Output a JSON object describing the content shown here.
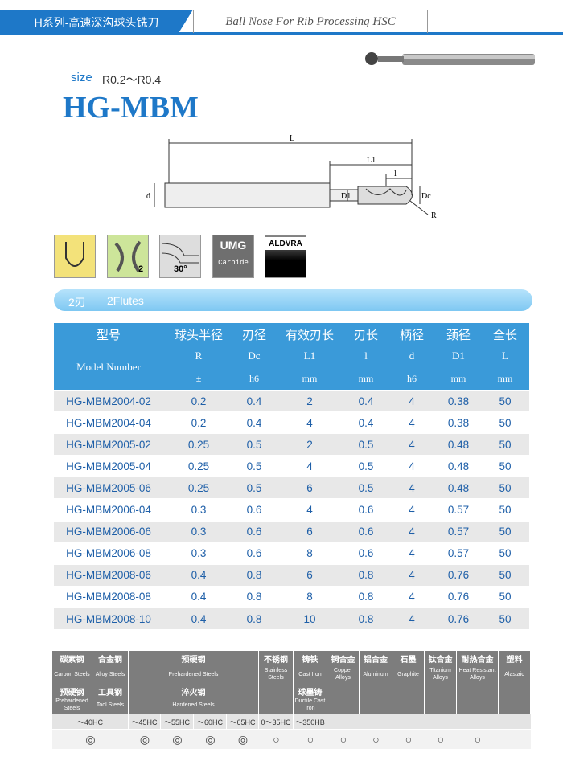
{
  "header": {
    "tab": "H系列-高速深沟球头铣刀",
    "subtitle": "Ball Nose For Rib Processing HSC"
  },
  "size": {
    "label": "size",
    "range": "R0.2～R0.4"
  },
  "title": "HG-MBM",
  "diagram": {
    "L": "L",
    "L1": "L1",
    "l": "l",
    "d": "d",
    "D1": "D1",
    "Dc": "Dc",
    "R": "R"
  },
  "icons": {
    "flutes": "2",
    "angle": "30°",
    "coating": "UMG",
    "material": "Carbide",
    "series": "ALDVRA"
  },
  "band": {
    "flutes_cn": "2刃",
    "flutes_en": "2Flutes"
  },
  "table": {
    "header_cn": [
      "型号",
      "球头半径",
      "刃径",
      "有效刃长",
      "刃长",
      "柄径",
      "颈径",
      "全长"
    ],
    "header_en": [
      "Model Number",
      "R",
      "Dc",
      "L1",
      "l",
      "d",
      "D1",
      "L"
    ],
    "header_unit": [
      "±",
      "h6",
      "mm",
      "mm",
      "h6",
      "mm",
      "mm"
    ],
    "rows": [
      [
        "HG-MBM2004-02",
        0.2,
        0.4,
        2,
        0.4,
        4,
        0.38,
        50
      ],
      [
        "HG-MBM2004-04",
        0.2,
        0.4,
        4,
        0.4,
        4,
        0.38,
        50
      ],
      [
        "HG-MBM2005-02",
        0.25,
        0.5,
        2,
        0.5,
        4,
        0.48,
        50
      ],
      [
        "HG-MBM2005-04",
        0.25,
        0.5,
        4,
        0.5,
        4,
        0.48,
        50
      ],
      [
        "HG-MBM2005-06",
        0.25,
        0.5,
        6,
        0.5,
        4,
        0.48,
        50
      ],
      [
        "HG-MBM2006-04",
        0.3,
        0.6,
        4,
        0.6,
        4,
        0.57,
        50
      ],
      [
        "HG-MBM2006-06",
        0.3,
        0.6,
        6,
        0.6,
        4,
        0.57,
        50
      ],
      [
        "HG-MBM2006-08",
        0.3,
        0.6,
        8,
        0.6,
        4,
        0.57,
        50
      ],
      [
        "HG-MBM2008-06",
        0.4,
        0.8,
        6,
        0.8,
        4,
        0.76,
        50
      ],
      [
        "HG-MBM2008-08",
        0.4,
        0.8,
        8,
        0.8,
        4,
        0.76,
        50
      ],
      [
        "HG-MBM2008-10",
        0.4,
        0.8,
        10,
        0.8,
        4,
        0.76,
        50
      ]
    ]
  },
  "materials": {
    "columns": [
      {
        "cn": "碳素钢",
        "en": "Carbon Steels",
        "cn2": "预硬钢",
        "en2": "Prehardened Steels"
      },
      {
        "cn": "合金钢",
        "en": "Alloy Steels",
        "cn2": "工具钢",
        "en2": "Tool Steels"
      },
      {
        "cn": "预硬钢",
        "en": "Prehardened Steels",
        "cn2": "淬火钢",
        "en2": "Hardened Steels"
      },
      {
        "cn": "不锈钢",
        "en": "Stainless Steels"
      },
      {
        "cn": "铸铁",
        "en": "Cast Iron",
        "cn2": "球墨铸",
        "en2": "Ductile Cast Iron"
      },
      {
        "cn": "铜合金",
        "en": "Copper Alloys"
      },
      {
        "cn": "铝合金",
        "en": "Aluminum"
      },
      {
        "cn": "石墨",
        "en": "Graphite"
      },
      {
        "cn": "钛合金",
        "en": "Titanium Alloys"
      },
      {
        "cn": "耐热合金",
        "en": "Heat Resistant Alloys"
      },
      {
        "cn": "塑料",
        "en": "Alastaic"
      }
    ],
    "hardness": [
      "～40HC",
      "～45HC",
      "～55HC",
      "～60HC",
      "～65HC",
      "0～35HC",
      "～350HB"
    ],
    "symbols": [
      "◎",
      "◎",
      "◎",
      "◎",
      "◎",
      "○",
      "○",
      "○",
      "○",
      "○",
      "○",
      "○"
    ]
  }
}
